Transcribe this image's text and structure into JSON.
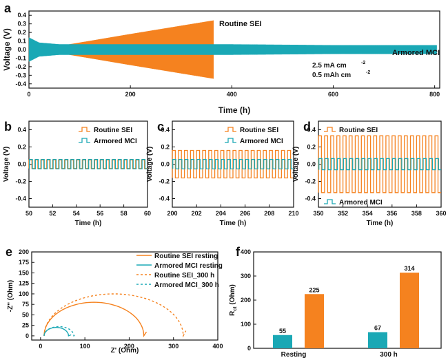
{
  "colors": {
    "routine": "#F5821F",
    "armored": "#1AA8B5",
    "axis": "#111111"
  },
  "chart_data": [
    {
      "panel": "a",
      "type": "line",
      "xlabel": "Time (h)",
      "ylabel": "Voltage (V)",
      "xlim": [
        0,
        810
      ],
      "ylim": [
        -0.45,
        0.45
      ],
      "xticks": [
        0,
        200,
        400,
        600,
        800
      ],
      "yticks": [
        -0.4,
        -0.3,
        -0.2,
        -0.1,
        0.0,
        0.1,
        0.2,
        0.3,
        0.4
      ],
      "series": [
        {
          "name": "Routine SEI",
          "t": [
            0,
            20,
            60,
            200,
            365
          ],
          "amplitude": [
            0.14,
            0.07,
            0.04,
            0.18,
            0.34
          ],
          "t_end": 365
        },
        {
          "name": "Armored MCI",
          "t": [
            0,
            20,
            60,
            200,
            400,
            600,
            800
          ],
          "amplitude": [
            0.14,
            0.08,
            0.06,
            0.06,
            0.06,
            0.05,
            0.05
          ],
          "t_end": 805
        }
      ],
      "annotations": [
        "Routine SEI",
        "Armored MCI"
      ],
      "conditions": [
        "2.5 mA cm",
        "-2",
        "0.5 mAh cm",
        "-2"
      ]
    },
    {
      "panel": "b",
      "type": "line",
      "xlabel": "Time (h)",
      "ylabel": "Voltage (V)",
      "xlim": [
        50,
        60
      ],
      "ylim": [
        -0.5,
        0.5
      ],
      "xticks": [
        50,
        52,
        54,
        56,
        58,
        60
      ],
      "yticks": [
        -0.4,
        -0.2,
        0.0,
        0.2,
        0.4
      ],
      "cycles": 20,
      "series": [
        {
          "name": "Routine SEI",
          "amplitude": 0.05
        },
        {
          "name": "Armored MCI",
          "amplitude": 0.055
        }
      ],
      "legend": "top-right"
    },
    {
      "panel": "c",
      "type": "line",
      "xlabel": "Time (h)",
      "ylabel": "Voltage (V)",
      "xlim": [
        200,
        210
      ],
      "ylim": [
        -0.5,
        0.5
      ],
      "xticks": [
        200,
        202,
        204,
        206,
        208,
        210
      ],
      "yticks": [
        -0.4,
        -0.2,
        0.0,
        0.2,
        0.4
      ],
      "cycles": 20,
      "series": [
        {
          "name": "Routine SEI",
          "amplitude": 0.16
        },
        {
          "name": "Armored MCI",
          "amplitude": 0.055
        }
      ],
      "legend": "top-right"
    },
    {
      "panel": "d",
      "type": "line",
      "xlabel": "Time (h)",
      "ylabel": "Voltage (V)",
      "xlim": [
        350,
        360
      ],
      "ylim": [
        -0.5,
        0.5
      ],
      "xticks": [
        350,
        352,
        354,
        356,
        358,
        360
      ],
      "yticks": [
        -0.4,
        -0.2,
        0.0,
        0.2,
        0.4
      ],
      "cycles": 20,
      "series": [
        {
          "name": "Routine SEI",
          "amplitude": 0.33
        },
        {
          "name": "Armored MCI",
          "amplitude": 0.065
        }
      ],
      "legend": "split top-left / bottom-left"
    },
    {
      "panel": "e",
      "type": "scatter",
      "xlabel": "Z' (Ohm)",
      "ylabel": "-Z'' (Ohm)",
      "xlim": [
        -20,
        400
      ],
      "ylim": [
        -10,
        200
      ],
      "xticks": [
        0,
        100,
        200,
        300,
        400
      ],
      "yticks": [
        0,
        25,
        50,
        75,
        100,
        125,
        150,
        175,
        200
      ],
      "series": [
        {
          "name": "Routine SEI resting",
          "style": "solid",
          "color": "routine",
          "r0": 8,
          "rct": 225,
          "peak": 80
        },
        {
          "name": "Armored MCI resting",
          "style": "solid",
          "color": "armored",
          "r0": 8,
          "rct": 55,
          "peak": 20
        },
        {
          "name": "Routine SEI_300 h",
          "style": "dashed",
          "color": "routine",
          "r0": 8,
          "rct": 314,
          "peak": 100
        },
        {
          "name": "Armored MCI_300 h",
          "style": "dashed",
          "color": "armored",
          "r0": 8,
          "rct": 67,
          "peak": 22
        }
      ],
      "legend": "top-right"
    },
    {
      "panel": "f",
      "type": "bar",
      "ylabel": "R",
      "ylabel_sub": "ct",
      "ylabel_unit": " (Ohm)",
      "ylim": [
        0,
        400
      ],
      "yticks": [
        0,
        100,
        200,
        300,
        400
      ],
      "categories": [
        "Resting",
        "300 h"
      ],
      "series": [
        {
          "name": "Armored MCI",
          "values": [
            55,
            67
          ]
        },
        {
          "name": "Routine SEI",
          "values": [
            225,
            314
          ]
        }
      ]
    }
  ]
}
